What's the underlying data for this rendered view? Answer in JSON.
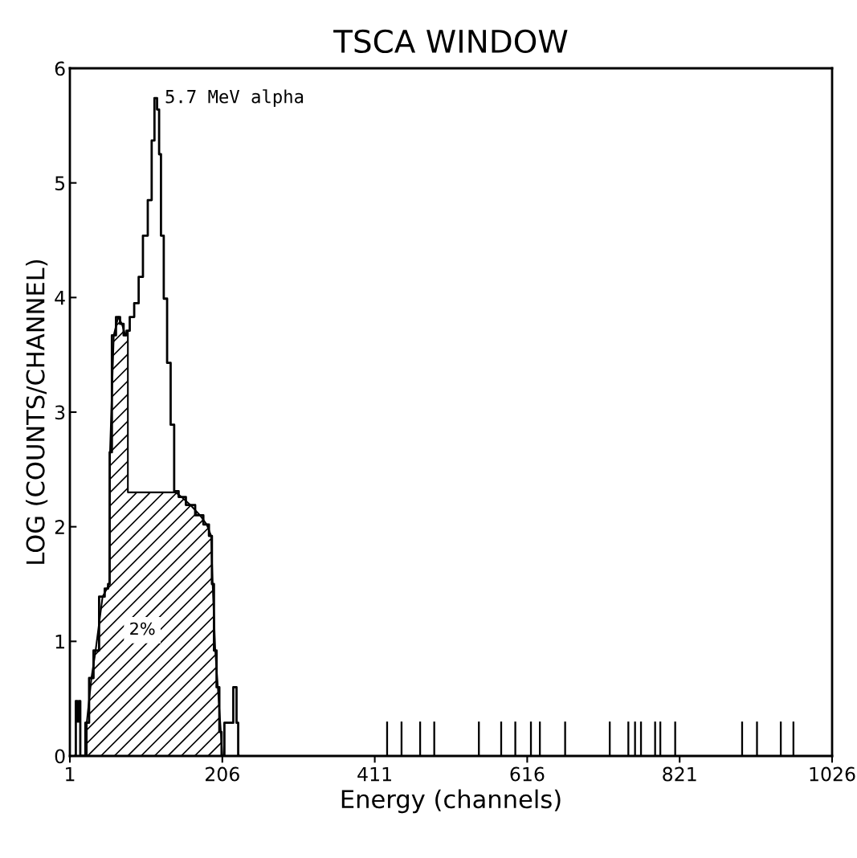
{
  "chart_data": {
    "type": "step",
    "title": "TSCA WINDOW",
    "xlabel": "Energy (channels)",
    "ylabel": "LOG (COUNTS/CHANNEL)",
    "xlim": [
      1,
      1026
    ],
    "ylim": [
      0,
      6
    ],
    "xticks": [
      1,
      206,
      411,
      616,
      821,
      1026
    ],
    "yticks": [
      0,
      1,
      2,
      3,
      4,
      5,
      6
    ],
    "grid": false,
    "series": [
      {
        "type": "area",
        "color": "#000000",
        "x": [
          23.7,
          30,
          35.6,
          45,
          50.7,
          54,
          55,
          60,
          66,
          71,
          75.5,
          79,
          79,
          143.5,
          151,
          163,
          176,
          185,
          191,
          193,
          196.5,
          200,
          204,
          206
        ],
        "values": [
          0.29,
          0.68,
          0.92,
          1.39,
          1.46,
          1.5,
          2.65,
          3.67,
          3.83,
          3.77,
          3.67,
          3.71,
          2.3,
          2.3,
          2.26,
          2.19,
          2.1,
          2.02,
          1.92,
          1.5,
          0.92,
          0.6,
          0.21,
          0
        ]
      },
      {
        "color": "#000000",
        "x": [
          8,
          10,
          12,
          14,
          16,
          20,
          23.7,
          30,
          35.6,
          45,
          50.7,
          54,
          55,
          60,
          66,
          71,
          75.5,
          79,
          84,
          91,
          96,
          102.5,
          109,
          113,
          116.5,
          120,
          122,
          125,
          129.5,
          134,
          139,
          143.5,
          151,
          163,
          176,
          185,
          191,
          193,
          196.5,
          200,
          204,
          206,
          211.6,
          218,
          223.5,
          226.7,
          228
        ],
        "values": [
          0,
          0.48,
          0.3,
          0.48,
          0,
          0,
          0.29,
          0.68,
          0.92,
          1.39,
          1.46,
          1.5,
          2.65,
          3.67,
          3.83,
          3.77,
          3.67,
          3.71,
          3.83,
          3.95,
          4.18,
          4.54,
          4.85,
          5.37,
          5.74,
          5.64,
          5.25,
          4.54,
          3.99,
          3.43,
          2.89,
          2.31,
          2.26,
          2.19,
          2.1,
          2.02,
          1.92,
          1.5,
          0.92,
          0.6,
          0.21,
          0,
          0.29,
          0.29,
          0.6,
          0.29,
          0
        ]
      },
      {
        "type": "bar",
        "color": "#000000",
        "x": [
          427.6,
          447,
          472,
          491,
          551,
          581,
          600,
          621,
          633,
          667,
          727,
          752,
          761,
          769,
          788,
          795,
          815,
          905,
          925,
          957,
          974
        ],
        "values": [
          0.3,
          0.3,
          0.3,
          0.3,
          0.3,
          0.3,
          0.3,
          0.3,
          0.3,
          0.3,
          0.3,
          0.3,
          0.3,
          0.3,
          0.3,
          0.3,
          0.3,
          0.3,
          0.3,
          0.3,
          0.3
        ]
      }
    ],
    "annotations": [
      {
        "text": "5.7 MeV alpha",
        "x": 116.5,
        "y": 5.74
      },
      "2%"
    ]
  }
}
